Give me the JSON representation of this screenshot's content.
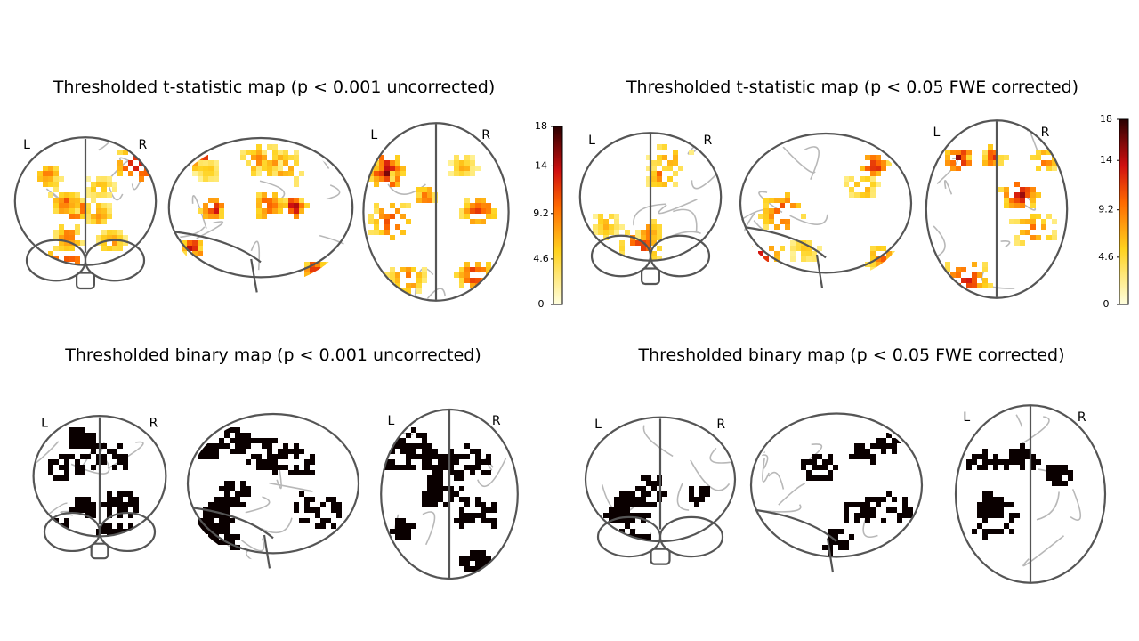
{
  "panels": [
    {
      "title": "Thresholded t-statistic map (p < 0.001 uncorrected)",
      "left_label": "L",
      "right_label": "R",
      "colorbar": {
        "lim": [
          0,
          18
        ],
        "ticks": [
          0,
          4.6,
          9.2,
          14,
          18
        ]
      }
    },
    {
      "title": "Thresholded t-statistic map (p < 0.05 FWE corrected)",
      "left_label": "L",
      "right_label": "R",
      "colorbar": {
        "lim": [
          0,
          18
        ],
        "ticks": [
          0,
          4.6,
          9.2,
          14,
          18
        ]
      }
    },
    {
      "title": "Thresholded binary map (p < 0.001 uncorrected)",
      "left_label": "L",
      "right_label": "R"
    },
    {
      "title": "Thresholded binary map (p < 0.05 FWE corrected)",
      "left_label": "L",
      "right_label": "R"
    }
  ]
}
